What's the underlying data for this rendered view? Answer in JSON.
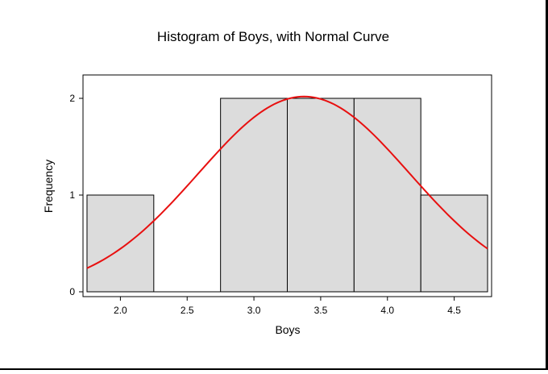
{
  "chart_data": {
    "type": "bar",
    "title": "Histogram of Boys, with Normal Curve",
    "xlabel": "Boys",
    "ylabel": "Frequency",
    "xlim": [
      1.72,
      4.78
    ],
    "ylim": [
      0,
      2.2
    ],
    "x_ticks": [
      2.0,
      2.5,
      3.0,
      3.5,
      4.0,
      4.5
    ],
    "x_tick_labels": [
      "2.0",
      "2.5",
      "3.0",
      "3.5",
      "4.0",
      "4.5"
    ],
    "y_ticks": [
      0,
      1,
      2
    ],
    "y_tick_labels": [
      "0",
      "1",
      "2"
    ],
    "bin_width": 0.5,
    "bins": [
      {
        "start": 1.75,
        "end": 2.25,
        "count": 1
      },
      {
        "start": 2.25,
        "end": 2.75,
        "count": 0
      },
      {
        "start": 2.75,
        "end": 3.25,
        "count": 2
      },
      {
        "start": 3.25,
        "end": 3.75,
        "count": 2
      },
      {
        "start": 3.75,
        "end": 4.25,
        "count": 2
      },
      {
        "start": 4.25,
        "end": 4.75,
        "count": 1
      }
    ],
    "normal_curve": {
      "mean": 3.375,
      "sd": 0.7906,
      "n": 8
    },
    "grid": false,
    "colors": {
      "bar_fill": "#dcdcdc",
      "curve": "#e81010",
      "axis": "#000000"
    }
  }
}
